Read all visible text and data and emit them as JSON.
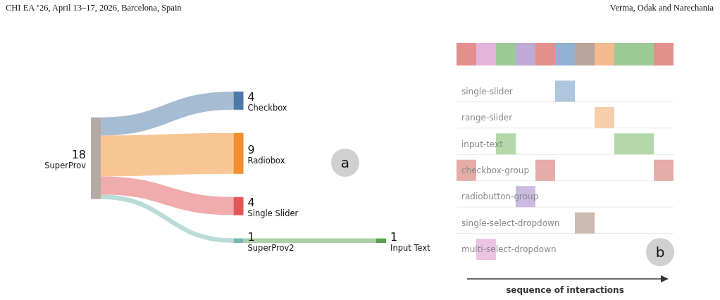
{
  "chart_data": [
    {
      "type": "other",
      "categories": [
        "SuperProv",
        "Checkbox",
        "Radiobox",
        "Single Slider",
        "SuperProv2",
        "Input Text"
      ],
      "values": [
        18,
        null,
        null,
        null,
        null,
        null
      ],
      "colors": [
        "#b5a9a4",
        "#4e79a7",
        "#f28e2b",
        "#e15759",
        "#76b7b2",
        "#59a14f"
      ],
      "data_labels": true,
      "series": [
        {
          "values": [
            null,
            4,
            9,
            4,
            1,
            null
          ]
        },
        {
          "values": [
            null,
            null,
            null,
            null,
            null,
            1
          ]
        }
      ],
      "annotations": [
        "CHI EA ’26, April 13–17, 2026, Barcelona, Spain",
        "Verma, Odak and Narechania",
        "a"
      ]
    },
    {
      "type": "other",
      "categories": [
        null,
        null,
        null,
        null,
        null,
        null,
        null,
        null,
        null,
        null,
        null
      ],
      "y_categories": [
        null
      ],
      "colors": [
        [
          "#de847f",
          "#e2acd8",
          "#94c48a",
          "#b8a0d0",
          "#de847f",
          "#87a9cc",
          "#b39a91",
          "#f2b383",
          "#94c48a",
          "#94c48a",
          "#de847f"
        ]
      ]
    },
    {
      "type": "other",
      "categories": [
        null,
        null,
        null,
        null,
        null,
        null,
        null,
        null,
        null,
        null,
        null
      ],
      "y_categories": [
        "single-slider",
        "range-slider",
        "input-text",
        "checkbox-group",
        "radiobutton-group",
        "single-select-dropdown",
        "multi-select-dropdown"
      ],
      "colors": [
        [
          null,
          null,
          null,
          null,
          null,
          "#a6c0dc",
          null,
          null,
          null,
          null,
          null
        ],
        [
          null,
          null,
          null,
          null,
          null,
          null,
          null,
          "#f5c9a2",
          null,
          null,
          null
        ],
        [
          null,
          null,
          "#acd4a2",
          null,
          null,
          null,
          null,
          null,
          "#acd4a2",
          "#acd4a2",
          null
        ],
        [
          "#e2a39e",
          null,
          null,
          null,
          "#e2a39e",
          null,
          null,
          null,
          null,
          null,
          "#e2a39e"
        ],
        [
          null,
          null,
          null,
          "#c6b2dd",
          null,
          null,
          null,
          null,
          null,
          null,
          null
        ],
        [
          null,
          null,
          null,
          null,
          null,
          null,
          "#c7b4ab",
          null,
          null,
          null,
          null
        ],
        [
          null,
          "#e9bee1",
          null,
          null,
          null,
          null,
          null,
          null,
          null,
          null,
          null
        ]
      ],
      "xlabel": "sequence of interactions",
      "annotations": [
        "b"
      ]
    }
  ]
}
